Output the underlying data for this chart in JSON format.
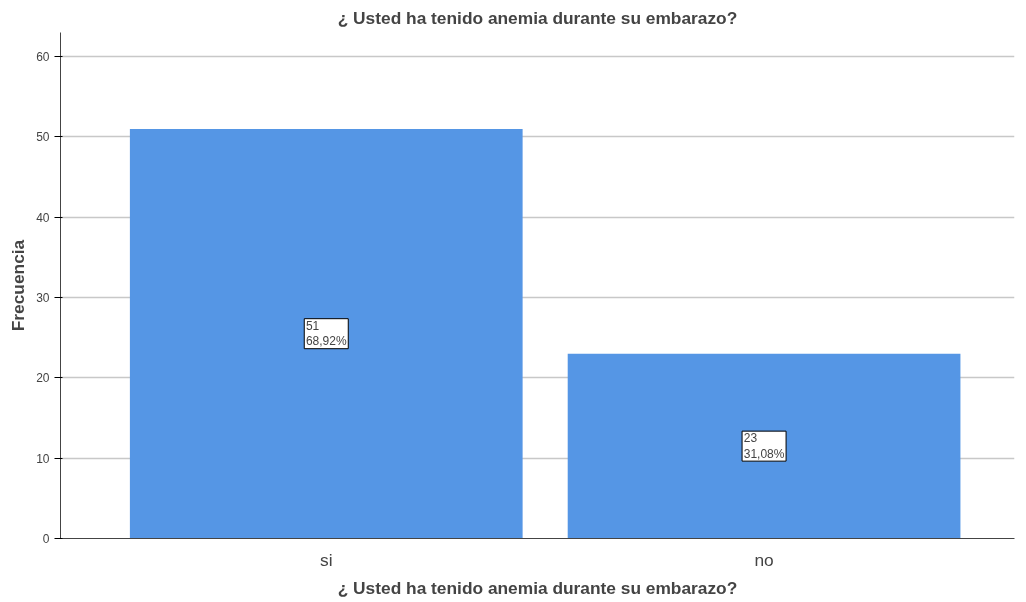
{
  "chart_data": {
    "type": "bar",
    "title": "¿ Usted ha tenido anemia durante su embarazo?",
    "xlabel": "¿ Usted ha tenido anemia durante su embarazo?",
    "ylabel": "Frecuencia",
    "categories": [
      "si",
      "no"
    ],
    "values": [
      51,
      23
    ],
    "color": "#5596e5",
    "value_labels": [
      "51\n68,92%",
      "23\n31,08%"
    ],
    "ylim": [
      0,
      63
    ],
    "yticks": [
      0,
      10,
      20,
      30,
      40,
      50,
      60
    ],
    "grid": "y"
  }
}
